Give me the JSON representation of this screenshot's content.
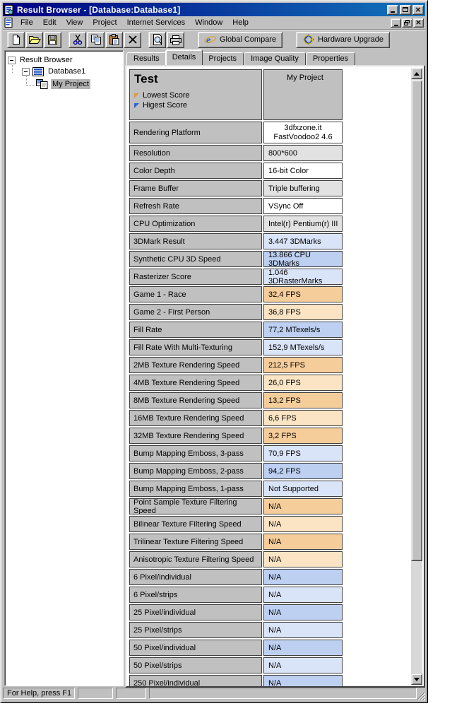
{
  "window": {
    "title": "Result Browser - [Database:Database1]"
  },
  "menu": {
    "items": [
      "File",
      "Edit",
      "View",
      "Project",
      "Internet Services",
      "Window",
      "Help"
    ]
  },
  "toolbar": {
    "buttons": [
      "new-document-icon",
      "open-folder-icon",
      "save-icon",
      "cut-icon",
      "copy-icon",
      "paste-icon",
      "delete-icon",
      "print-preview-icon",
      "print-icon"
    ],
    "global_compare": {
      "label": "Global Compare",
      "icon": "internet-e-icon"
    },
    "hardware_upgrade": {
      "label": "Hardware Upgrade",
      "icon": "knot-icon"
    }
  },
  "tree": {
    "root": "Result Browser",
    "database": "Database1",
    "project": "My Project"
  },
  "tabs": {
    "items": [
      "Results",
      "Details",
      "Projects",
      "Image Quality",
      "Properties"
    ],
    "active": "Details"
  },
  "details": {
    "header": {
      "title": "Test",
      "legend": [
        {
          "label": "Lowest Score",
          "marker": "lowest-score-marker"
        },
        {
          "label": "Higest Score",
          "marker": "highest-score-marker"
        }
      ],
      "column_header": "My Project"
    },
    "rows": [
      {
        "label": "Rendering Platform",
        "value": [
          "3dfxzone.it",
          "FastVoodoo2 4.6"
        ],
        "color": "white",
        "center": true,
        "tall": true
      },
      {
        "label": "Resolution",
        "value": "800*600",
        "color": "gray"
      },
      {
        "label": "Color Depth",
        "value": "16-bit Color",
        "color": "white"
      },
      {
        "label": "Frame Buffer",
        "value": "Triple buffering",
        "color": "gray"
      },
      {
        "label": "Refresh Rate",
        "value": "VSync Off",
        "color": "white"
      },
      {
        "label": "CPU Optimization",
        "value": "Intel(r) Pentium(r) III",
        "color": "gray"
      },
      {
        "label": "3DMark Result",
        "value": "3.447 3DMarks",
        "color": "blue_light"
      },
      {
        "label": "Synthetic CPU 3D Speed",
        "value": "13.866 CPU 3DMarks",
        "color": "blue_dark"
      },
      {
        "label": "Rasterizer Score",
        "value": "1.046 3DRasterMarks",
        "color": "blue_light"
      },
      {
        "label": "Game 1 - Race",
        "value": "32,4 FPS",
        "color": "orange_dark"
      },
      {
        "label": "Game 2 - First Person",
        "value": "36,8 FPS",
        "color": "orange_light"
      },
      {
        "label": "Fill Rate",
        "value": "77,2 MTexels/s",
        "color": "blue_dark"
      },
      {
        "label": "Fill Rate With Multi-Texturing",
        "value": "152,9 MTexels/s",
        "color": "blue_light"
      },
      {
        "label": "2MB Texture Rendering Speed",
        "value": "212,5 FPS",
        "color": "orange_dark"
      },
      {
        "label": "4MB Texture Rendering Speed",
        "value": "26,0 FPS",
        "color": "orange_light"
      },
      {
        "label": "8MB Texture Rendering Speed",
        "value": "13,2 FPS",
        "color": "orange_dark"
      },
      {
        "label": "16MB Texture Rendering Speed",
        "value": "6,6 FPS",
        "color": "orange_light"
      },
      {
        "label": "32MB Texture Rendering Speed",
        "value": "3,2 FPS",
        "color": "orange_dark"
      },
      {
        "label": "Bump Mapping Emboss, 3-pass",
        "value": "70,9 FPS",
        "color": "blue_light"
      },
      {
        "label": "Bump Mapping Emboss, 2-pass",
        "value": "94,2 FPS",
        "color": "blue_dark"
      },
      {
        "label": "Bump Mapping Emboss, 1-pass",
        "value": "Not Supported",
        "color": "blue_light"
      },
      {
        "label": "Point Sample Texture Filtering Speed",
        "value": "N/A",
        "color": "orange_dark"
      },
      {
        "label": "Bilinear Texture Filtering Speed",
        "value": "N/A",
        "color": "orange_light"
      },
      {
        "label": "Trilinear Texture Filtering Speed",
        "value": "N/A",
        "color": "orange_dark"
      },
      {
        "label": "Anisotropic Texture Filtering Speed",
        "value": "N/A",
        "color": "orange_light"
      },
      {
        "label": "6 Pixel/individual",
        "value": "N/A",
        "color": "blue_dark"
      },
      {
        "label": "6 Pixel/strips",
        "value": "N/A",
        "color": "blue_light"
      },
      {
        "label": "25 Pixel/individual",
        "value": "N/A",
        "color": "blue_dark"
      },
      {
        "label": "25 Pixel/strips",
        "value": "N/A",
        "color": "blue_light"
      },
      {
        "label": "50 Pixel/individual",
        "value": "N/A",
        "color": "blue_dark"
      },
      {
        "label": "50 Pixel/strips",
        "value": "N/A",
        "color": "blue_light"
      },
      {
        "label": "250 Pixel/individual",
        "value": "N/A",
        "color": "blue_dark"
      }
    ]
  },
  "statusbar": {
    "message": "For Help, press F1"
  },
  "colors": {
    "titlebar_start": "#000080",
    "titlebar_end": "#1274bc",
    "chrome": "#c0c0c0",
    "tree_selection": "#b4b4b4",
    "legend_lowest": "#d89a4a",
    "legend_highest": "#3a62c8",
    "cell": {
      "white": "#ffffff",
      "gray": "#e2e2e2",
      "blue_dark": "#bdd0f2",
      "blue_light": "#dae4f8",
      "orange_dark": "#f5cd9b",
      "orange_light": "#fae4c4"
    }
  }
}
